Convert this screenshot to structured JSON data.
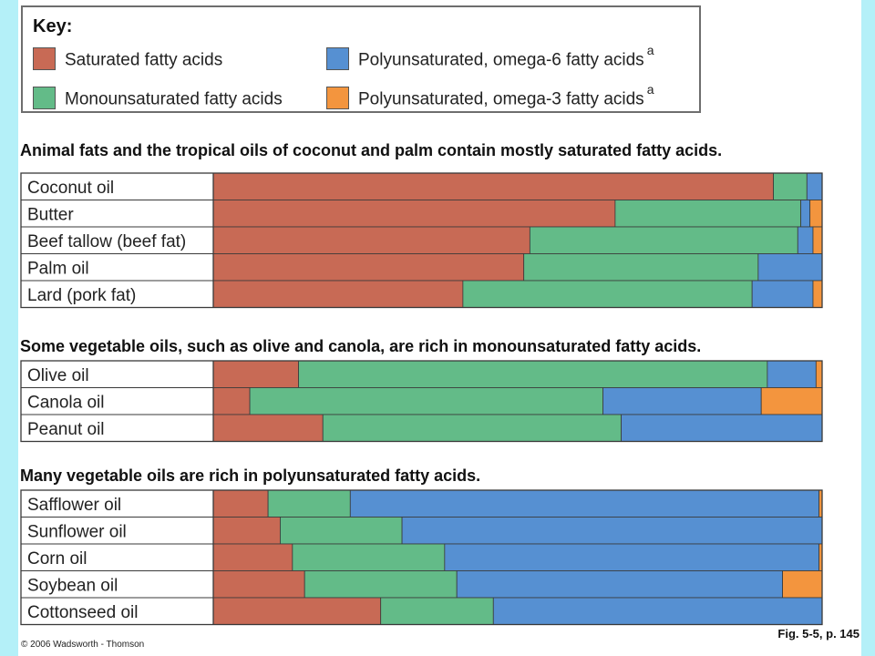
{
  "key": {
    "title": "Key:",
    "entries": [
      {
        "label": "Saturated fatty acids",
        "sup": "",
        "color": "#c86a55"
      },
      {
        "label": "Polyunsaturated, omega-6 fatty acids",
        "sup": "a",
        "color": "#5690d2"
      },
      {
        "label": "Monounsaturated fatty acids",
        "sup": "",
        "color": "#63bb88"
      },
      {
        "label": "Polyunsaturated, omega-3 fatty acids",
        "sup": "a",
        "color": "#f3953e"
      }
    ]
  },
  "chart_data": {
    "type": "bar",
    "orientation": "horizontal",
    "stacked": true,
    "xlim": [
      0,
      100
    ],
    "series": [
      {
        "name": "Saturated fatty acids",
        "color": "#c86a55"
      },
      {
        "name": "Monounsaturated fatty acids",
        "color": "#63bb88"
      },
      {
        "name": "Polyunsaturated, omega-6 fatty acids",
        "color": "#5690d2"
      },
      {
        "name": "Polyunsaturated, omega-3 fatty acids",
        "color": "#f3953e"
      }
    ],
    "groups": [
      {
        "title": "Animal fats and the tropical oils of coconut and palm contain mostly saturated fatty acids.",
        "rows": [
          {
            "label": "Coconut oil",
            "values": [
              92,
              5.5,
              2.5,
              0
            ]
          },
          {
            "label": "Butter",
            "values": [
              66,
              30.5,
              1.5,
              2
            ]
          },
          {
            "label": "Beef tallow (beef fat)",
            "values": [
              52,
              44,
              2.5,
              1.5
            ]
          },
          {
            "label": "Palm oil",
            "values": [
              51,
              38.5,
              10.5,
              0
            ]
          },
          {
            "label": "Lard (pork fat)",
            "values": [
              41,
              47.5,
              10,
              1.5
            ]
          }
        ]
      },
      {
        "title": "Some vegetable oils, such as olive and canola, are rich in monounsaturated fatty acids.",
        "rows": [
          {
            "label": "Olive oil",
            "values": [
              14,
              77,
              8,
              1
            ]
          },
          {
            "label": "Canola oil",
            "values": [
              6,
              58,
              26,
              10
            ]
          },
          {
            "label": "Peanut oil",
            "values": [
              18,
              49,
              33,
              0
            ]
          }
        ]
      },
      {
        "title": "Many vegetable oils are rich in polyunsaturated fatty acids.",
        "rows": [
          {
            "label": "Safflower oil",
            "values": [
              9,
              13.5,
              77,
              0.5
            ]
          },
          {
            "label": "Sunflower oil",
            "values": [
              11,
              20,
              69,
              0
            ]
          },
          {
            "label": "Corn oil",
            "values": [
              13,
              25,
              61.5,
              0.5
            ]
          },
          {
            "label": "Soybean oil",
            "values": [
              15,
              25,
              53.5,
              6.5
            ]
          },
          {
            "label": "Cottonseed oil",
            "values": [
              27.5,
              18.5,
              54,
              0
            ]
          }
        ]
      }
    ]
  },
  "footer": {
    "copyright": "© 2006 Wadsworth - Thomson",
    "figure_ref": "Fig. 5-5, p. 145"
  }
}
